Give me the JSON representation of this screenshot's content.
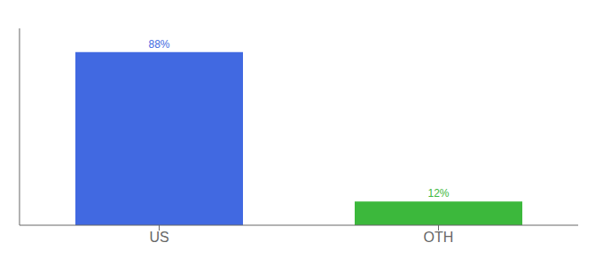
{
  "chart_data": {
    "type": "bar",
    "categories": [
      "US",
      "OTH"
    ],
    "values": [
      88,
      12
    ],
    "value_labels": [
      "88%",
      "12%"
    ],
    "colors": [
      "#4169e1",
      "#3cb83c"
    ],
    "ylim": [
      0,
      100
    ],
    "grid": false,
    "data_labels": true,
    "tick_labels": "x"
  }
}
